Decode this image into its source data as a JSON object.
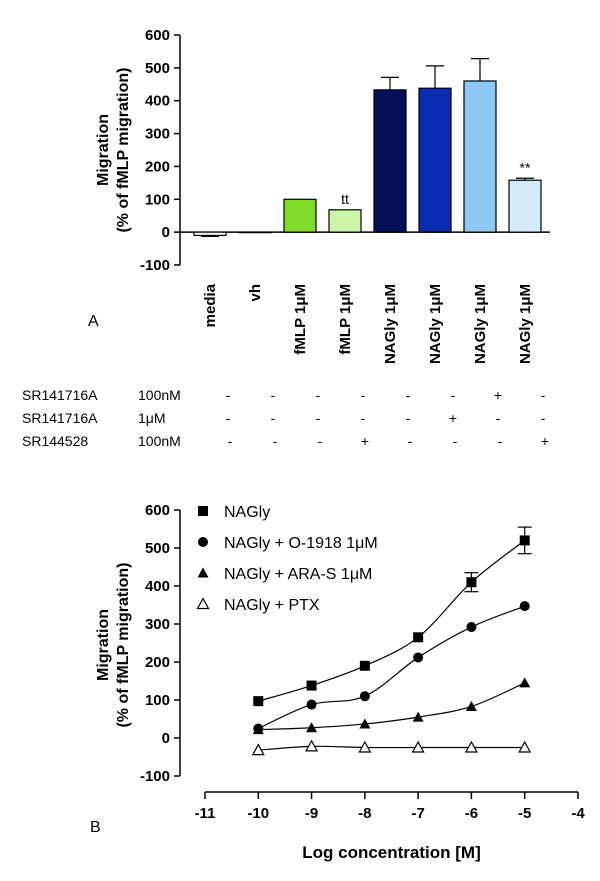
{
  "chart_data": [
    {
      "panel": "A",
      "type": "bar",
      "ylabel_line1": "Migration",
      "ylabel_line2": "(% of fMLP migration)",
      "ylim": [
        -100,
        600
      ],
      "yticks": [
        "-100",
        "0",
        "100",
        "200",
        "300",
        "400",
        "500",
        "600"
      ],
      "categories": [
        "media",
        "vh",
        "fMLP 1μM",
        "fMLP 1μM",
        "NAGly 1μM",
        "NAGly 1μM",
        "NAGly 1μM",
        "NAGly 1μM"
      ],
      "values": [
        -10,
        0,
        100,
        68,
        433,
        438,
        460,
        158
      ],
      "errors": [
        3,
        0,
        0,
        0,
        38,
        68,
        68,
        6
      ],
      "colors": [
        "#ffffff",
        "#ffffff",
        "#7fdc2a",
        "#ccf5a8",
        "#05105a",
        "#0a2bb2",
        "#8ec8f5",
        "#d4ebfb"
      ],
      "annotations": [
        {
          "index": 3,
          "text": "tt"
        },
        {
          "index": 7,
          "text": "**"
        }
      ],
      "treatment_table": {
        "rows": [
          {
            "label": "SR141716A",
            "conc": "100nM",
            "marks": [
              "-",
              "-",
              "-",
              "-",
              "-",
              "-",
              "+",
              "-"
            ]
          },
          {
            "label": "SR141716A",
            "conc": "1μM",
            "marks": [
              "-",
              "-",
              "-",
              "-",
              "-",
              "+",
              "-",
              "-"
            ]
          },
          {
            "label": "SR144528",
            "conc": "100nM",
            "marks": [
              "-",
              "-",
              "-",
              "+",
              "-",
              "-",
              "-",
              "+"
            ]
          }
        ]
      }
    },
    {
      "panel": "B",
      "type": "scatter",
      "xlabel": "Log concentration [M]",
      "ylabel_line1": "Migration",
      "ylabel_line2": "(% of fMLP migration)",
      "xlim": [
        -11,
        -4
      ],
      "ylim": [
        -100,
        600
      ],
      "xticks": [
        "-11",
        "-10",
        "-9",
        "-8",
        "-7",
        "-6",
        "-5",
        "-4"
      ],
      "yticks": [
        "-100",
        "0",
        "100",
        "200",
        "300",
        "400",
        "500",
        "600"
      ],
      "x": [
        -10,
        -9,
        -8,
        -7,
        -6,
        -5
      ],
      "series": [
        {
          "name": "NAGly",
          "marker": "square",
          "values": [
            97,
            138,
            190,
            265,
            410,
            520
          ],
          "errors": [
            0,
            0,
            0,
            0,
            25,
            35
          ]
        },
        {
          "name": "NAGly + O-1918 1μM",
          "marker": "circle",
          "values": [
            25,
            88,
            110,
            212,
            292,
            347
          ],
          "errors": [
            0,
            0,
            0,
            0,
            0,
            0
          ]
        },
        {
          "name": "NAGly + ARA-S 1μM",
          "marker": "triangle",
          "values": [
            22,
            27,
            37,
            55,
            83,
            145
          ],
          "errors": [
            0,
            0,
            0,
            0,
            0,
            0
          ]
        },
        {
          "name": "NAGly + PTX",
          "marker": "triangle-open",
          "values": [
            -32,
            -22,
            -25,
            -25,
            -25,
            -25
          ],
          "errors": [
            0,
            0,
            0,
            0,
            0,
            0
          ]
        }
      ]
    }
  ]
}
